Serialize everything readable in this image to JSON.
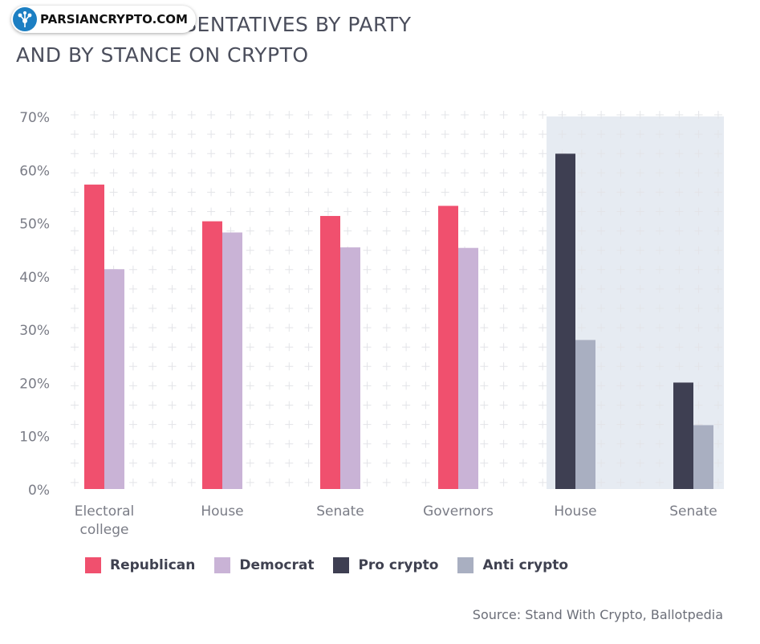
{
  "title": {
    "line1": "ELECTED REPRESENTATIVES BY PARTY",
    "line2": "AND BY STANCE ON CRYPTO"
  },
  "watermark": "PARSIANCRYPTO.COM",
  "source": "Source: Stand With Crypto, Ballotpedia",
  "colors": {
    "republican": "#f0506e",
    "democrat": "#c9b3d6",
    "pro_crypto": "#3e3f52",
    "anti_crypto": "#a9afc1",
    "highlight_bg": "#e6ebf2",
    "axis_text": "#7a7c86"
  },
  "legend": [
    {
      "label": "Republican",
      "color": "#f0506e"
    },
    {
      "label": "Democrat",
      "color": "#c9b3d6"
    },
    {
      "label": "Pro crypto",
      "color": "#3e3f52"
    },
    {
      "label": "Anti crypto",
      "color": "#a9afc1"
    }
  ],
  "chart_data": {
    "type": "bar",
    "categories": [
      "Electoral college",
      "House",
      "Senate",
      "Governors",
      "House",
      "Senate"
    ],
    "category_lines": [
      [
        "Electoral",
        "college"
      ],
      [
        "House"
      ],
      [
        "Senate"
      ],
      [
        "Governors"
      ],
      [
        "House"
      ],
      [
        "Senate"
      ]
    ],
    "series": [
      {
        "name": "Republican",
        "values": [
          57.2,
          50.3,
          51.3,
          53.2,
          null,
          null
        ]
      },
      {
        "name": "Democrat",
        "values": [
          41.3,
          48.2,
          45.4,
          45.3,
          null,
          null
        ]
      },
      {
        "name": "Pro crypto",
        "values": [
          null,
          null,
          null,
          null,
          63.0,
          20.0
        ]
      },
      {
        "name": "Anti crypto",
        "values": [
          null,
          null,
          null,
          null,
          28.0,
          12.0
        ]
      }
    ],
    "highlighted_categories": [
      4,
      5
    ],
    "yticks": [
      "0%",
      "10%",
      "20%",
      "30%",
      "40%",
      "50%",
      "60%",
      "70%"
    ],
    "ylim": [
      0,
      70
    ],
    "grid": true,
    "legend_position": "bottom-left"
  }
}
